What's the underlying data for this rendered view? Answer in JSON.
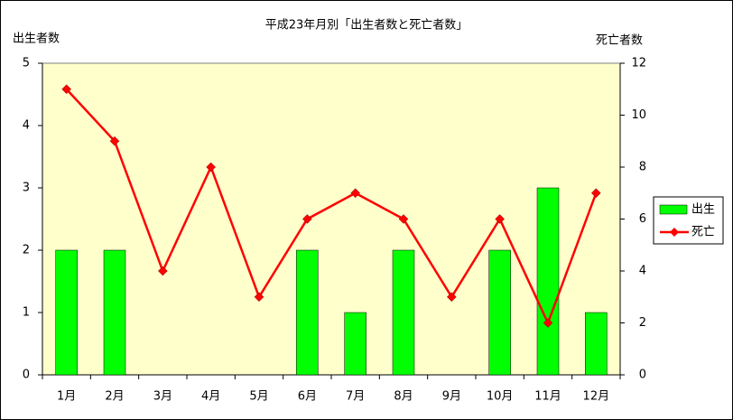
{
  "chart_data": {
    "type": "bar-line",
    "title": "平成23年月別「出生者数と死亡者数」",
    "ylabel": "出生者数",
    "y2label": "死亡者数",
    "categories": [
      "1月",
      "2月",
      "3月",
      "4月",
      "5月",
      "6月",
      "7月",
      "8月",
      "9月",
      "10月",
      "11月",
      "12月"
    ],
    "series": [
      {
        "name": "出生",
        "type": "bar",
        "color": "#00ff00",
        "values": [
          2,
          2,
          0,
          0,
          0,
          2,
          1,
          2,
          0,
          2,
          3,
          1
        ]
      },
      {
        "name": "死亡",
        "type": "line",
        "axis": "y2",
        "color": "#ff0000",
        "values": [
          11,
          9,
          4,
          8,
          3,
          6,
          7,
          6,
          3,
          6,
          2,
          7
        ]
      }
    ],
    "ylim": [
      0,
      5
    ],
    "yticks": [
      0,
      1,
      2,
      3,
      4,
      5
    ],
    "y2lim": [
      0,
      12
    ],
    "y2ticks": [
      0,
      2,
      4,
      6,
      8,
      10,
      12
    ],
    "grid": false,
    "legend": "right",
    "background": "#ffffcc"
  }
}
